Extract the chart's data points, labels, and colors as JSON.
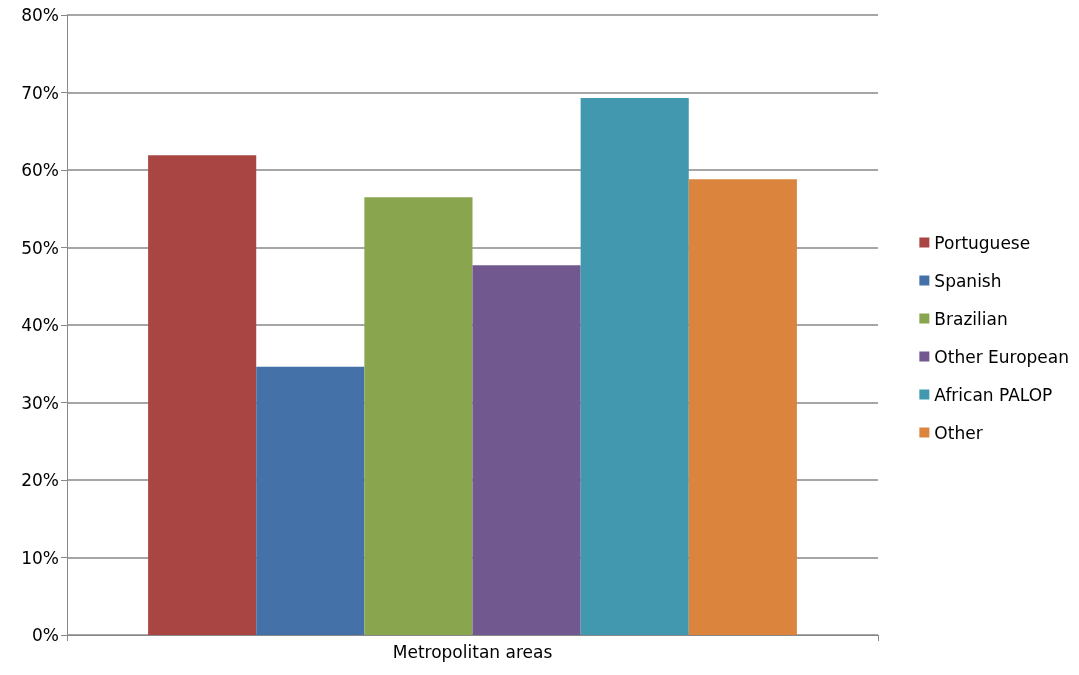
{
  "chart_data": {
    "type": "bar",
    "categories": [
      "Metropolitan areas"
    ],
    "series": [
      {
        "name": "Portuguese",
        "color": "#a94643",
        "values": [
          61.9
        ]
      },
      {
        "name": "Spanish",
        "color": "#4471a7",
        "values": [
          34.6
        ]
      },
      {
        "name": "Brazilian",
        "color": "#89a54e",
        "values": [
          56.5
        ]
      },
      {
        "name": "Other European",
        "color": "#71588f",
        "values": [
          47.7
        ]
      },
      {
        "name": "African PALOP",
        "color": "#4198af",
        "values": [
          69.3
        ]
      },
      {
        "name": "Other",
        "color": "#db843d",
        "values": [
          58.8
        ]
      }
    ],
    "ylim": [
      0,
      80
    ],
    "yticks": [
      {
        "value": 0,
        "label": "0%"
      },
      {
        "value": 10,
        "label": "10%"
      },
      {
        "value": 20,
        "label": "20%"
      },
      {
        "value": 30,
        "label": "30%"
      },
      {
        "value": 40,
        "label": "40%"
      },
      {
        "value": 50,
        "label": "50%"
      },
      {
        "value": 60,
        "label": "60%"
      },
      {
        "value": 70,
        "label": "70%"
      },
      {
        "value": 80,
        "label": "80%"
      }
    ],
    "grid": "y",
    "legend": "right"
  }
}
